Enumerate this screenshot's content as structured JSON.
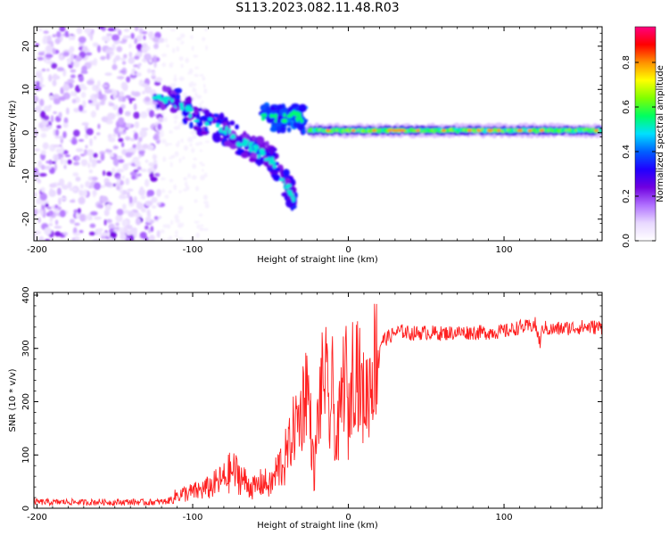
{
  "figure": {
    "title": "S113.2023.082.11.48.R03"
  },
  "chart_data": [
    {
      "type": "heatmap",
      "title": "",
      "xlabel": "Height of straight line (km)",
      "ylabel": "Frequency (Hz)",
      "xlim": [
        -202,
        163
      ],
      "ylim": [
        -25,
        24.5
      ],
      "x_ticks": [
        -200,
        -100,
        0,
        100
      ],
      "y_ticks": [
        -20,
        -10,
        0,
        10,
        20
      ],
      "colorbar": {
        "label": "Normalized spectral amplitude",
        "range": [
          0,
          0.96
        ],
        "ticks": [
          0.0,
          0.2,
          0.4,
          0.6,
          0.8
        ],
        "tick_labels": [
          "0.0",
          "0.2",
          "0.4",
          "0.6",
          "0.8"
        ],
        "colormap": [
          "#ffffff",
          "#e8d8ff",
          "#b070ff",
          "#7000e0",
          "#2000ff",
          "#0060ff",
          "#00e0ff",
          "#00ff60",
          "#80ff00",
          "#ffff00",
          "#ff9000",
          "#ff0000",
          "#ff0080"
        ]
      },
      "features": [
        {
          "name": "scatter noise",
          "x_range": [
            -202,
            -120
          ],
          "y_range": [
            -25,
            24.5
          ],
          "amplitude": [
            0.05,
            0.25
          ]
        },
        {
          "name": "descending streak",
          "points": [
            [
              -125,
              8
            ],
            [
              -110,
              7
            ],
            [
              -95,
              3
            ],
            [
              -80,
              1
            ],
            [
              -70,
              -2
            ],
            [
              -60,
              -4
            ],
            [
              -50,
              -6
            ],
            [
              -40,
              -12
            ],
            [
              -35,
              -15
            ]
          ],
          "amplitude": [
            0.2,
            0.5
          ]
        },
        {
          "name": "upper cluster",
          "points": [
            [
              -55,
              4
            ],
            [
              -45,
              3
            ],
            [
              -35,
              4
            ],
            [
              -28,
              3
            ]
          ],
          "amplitude": [
            0.3,
            0.55
          ]
        },
        {
          "name": "carrier line",
          "x_range": [
            -25,
            163
          ],
          "y": 0.5,
          "amplitude": [
            0.4,
            0.8
          ]
        }
      ]
    },
    {
      "type": "line",
      "title": "",
      "xlabel": "Height of straight line (km)",
      "ylabel": "SNR (10 * v/v)",
      "xlim": [
        -202,
        163
      ],
      "ylim": [
        0,
        405
      ],
      "x_ticks": [
        -200,
        -100,
        0,
        100
      ],
      "y_ticks": [
        0,
        100,
        200,
        300,
        400
      ],
      "line_color": "#ff2020",
      "series": [
        {
          "x": [
            -202,
            -190,
            -180,
            -170,
            -160,
            -150,
            -140,
            -130,
            -120,
            -115,
            -110,
            -100,
            -90,
            -80,
            -75,
            -70,
            -65,
            -60,
            -55,
            -50,
            -45,
            -40,
            -35,
            -30,
            -27,
            -25,
            -22,
            -20,
            -18,
            -15,
            -12,
            -10,
            -8,
            -5,
            -2,
            0,
            2,
            5,
            8,
            10,
            12,
            14,
            16,
            18,
            20,
            22,
            25,
            28,
            30,
            35,
            40,
            50,
            60,
            70,
            80,
            90,
            100,
            105,
            110,
            115,
            120,
            123,
            125,
            130,
            140,
            150,
            163
          ],
          "values": [
            12,
            11,
            12,
            11,
            12,
            11,
            12,
            11,
            12,
            14,
            25,
            30,
            38,
            55,
            70,
            62,
            45,
            38,
            50,
            42,
            75,
            95,
            150,
            180,
            240,
            190,
            60,
            150,
            210,
            260,
            160,
            230,
            110,
            180,
            280,
            150,
            245,
            290,
            220,
            205,
            215,
            240,
            270,
            290,
            305,
            315,
            320,
            325,
            330,
            332,
            328,
            330,
            328,
            330,
            330,
            330,
            332,
            335,
            340,
            340,
            345,
            310,
            340,
            335,
            338,
            340,
            340
          ]
        }
      ]
    }
  ]
}
